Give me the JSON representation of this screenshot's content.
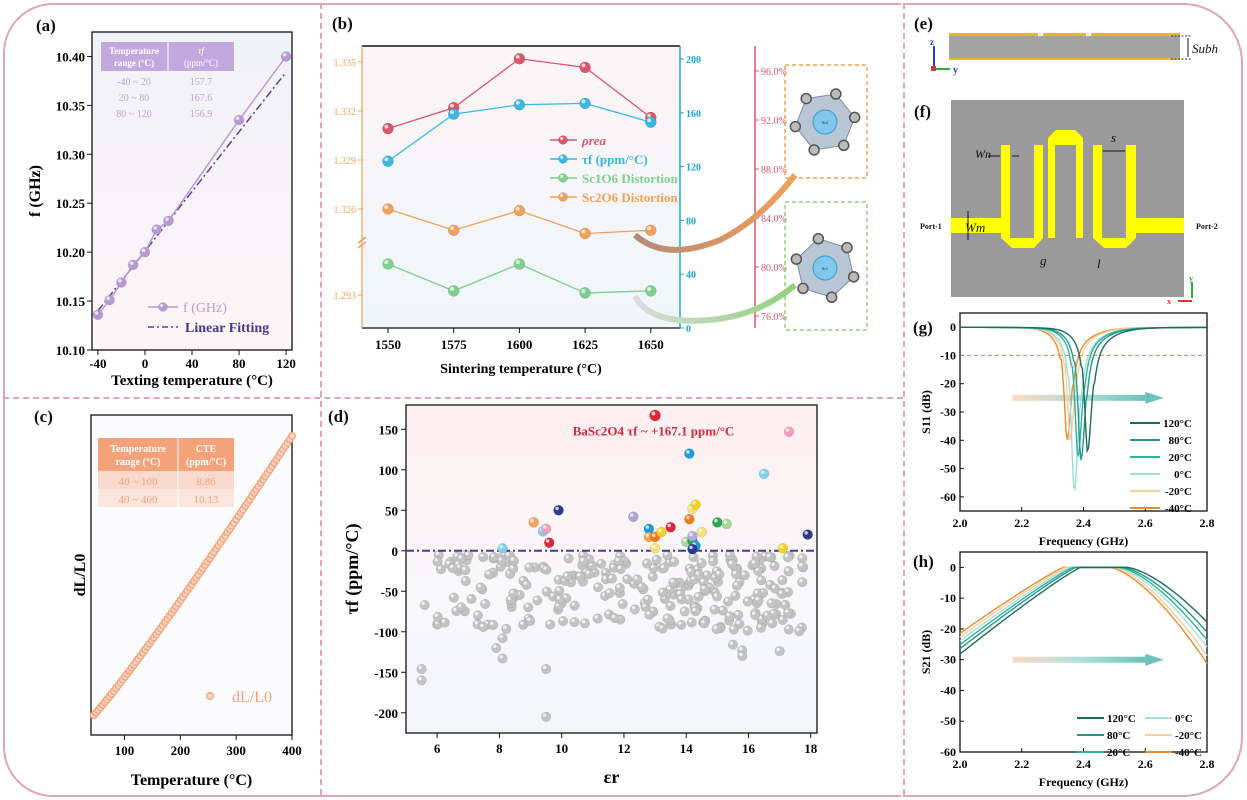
{
  "panel_labels": [
    "(a)",
    "(b)",
    "(c)",
    "(d)",
    "(e)",
    "(f)",
    "(g)",
    "(h)"
  ],
  "chart_data": [
    {
      "id": "a",
      "type": "line",
      "xlabel": "Texting temperature (°C)",
      "ylabel": "f (GHz)",
      "xlim": [
        -45,
        125
      ],
      "ylim": [
        10.1,
        10.425
      ],
      "xticks": [
        -40,
        0,
        40,
        80,
        120
      ],
      "yticks": [
        "10.10",
        "10.15",
        "10.20",
        "10.25",
        "10.30",
        "10.35",
        "10.40"
      ],
      "series": [
        {
          "name": "f (GHz)",
          "x": [
            -40,
            -30,
            -20,
            -10,
            0,
            10,
            20,
            80,
            120
          ],
          "y": [
            10.136,
            10.151,
            10.169,
            10.187,
            10.2,
            10.223,
            10.232,
            10.335,
            10.4
          ],
          "color": "#b79ad4"
        },
        {
          "name": "Linear Fitting",
          "x": [
            -40,
            120
          ],
          "y": [
            10.14,
            10.384
          ],
          "color": "#5b3f96",
          "style": "dashdot"
        }
      ],
      "legend": [
        "f (GHz)",
        "Linear Fitting"
      ],
      "inset_table": {
        "headers": [
          "Temperature range (°C)",
          "τf (ppm/°C)"
        ],
        "rows": [
          [
            "-40 ~ 20",
            "157.7"
          ],
          [
            "20 ~ 80",
            "167.6"
          ],
          [
            "80 ~ 120",
            "156.9"
          ]
        ],
        "header_color": "#c3a8de"
      }
    },
    {
      "id": "b",
      "type": "line",
      "xlabel": "Sintering temperature (°C)",
      "categories": [
        1550,
        1575,
        1600,
        1625,
        1650
      ],
      "left_axis_ticks": [
        "1.293",
        "1.326",
        "1.329",
        "1.332",
        "1.335"
      ],
      "blue_axis_ticks": [
        0,
        40,
        80,
        120,
        160,
        200
      ],
      "red_axis_ticks": [
        "76.0%",
        "80.0%",
        "84.0%",
        "88.0%",
        "92.0%",
        "96.0%"
      ],
      "series": [
        {
          "name": "ρrea",
          "axis": "red",
          "values": [
            91.3,
            93.0,
            97.0,
            96.3,
            92.2
          ],
          "color": "#d9566b"
        },
        {
          "name": "τf (ppm/°C)",
          "axis": "blue",
          "values": [
            124,
            159,
            166,
            167,
            153
          ],
          "color": "#3bb6e3"
        },
        {
          "name": "Sc1O6 Distortion",
          "axis": "left-lower",
          "values": [
            1.2945,
            1.2932,
            1.2945,
            1.2931,
            1.2932
          ],
          "color": "#7fcf8e"
        },
        {
          "name": "Sc2O6 Distortion",
          "axis": "left-upper",
          "values": [
            1.326,
            1.3247,
            1.3259,
            1.3245,
            1.3247
          ],
          "color": "#f0a05a"
        }
      ],
      "legend": [
        "ρrea",
        "τf (ppm/°C)",
        "Sc1O6 Distortion",
        "Sc2O6 Distortion"
      ],
      "structures": [
        {
          "label": "Sc2",
          "box_color": "#f0a05a"
        },
        {
          "label": "Sc1",
          "box_color": "#8fd07c"
        }
      ]
    },
    {
      "id": "c",
      "type": "scatter",
      "xlabel": "Temperature (°C)",
      "ylabel": "dL/L0",
      "xlim": [
        40,
        400
      ],
      "xticks": [
        100,
        200,
        300,
        400
      ],
      "legend": [
        "dL/L0"
      ],
      "series": [
        {
          "name": "dL/L0",
          "x_start": 45,
          "x_end": 400,
          "count": 90,
          "color": "#f2a27a"
        }
      ],
      "inset_table": {
        "headers": [
          "Temperature range (°C)",
          "CTE (ppm/°C)"
        ],
        "rows": [
          [
            "40 ~ 100",
            "8.86"
          ],
          [
            "40 ~ 400",
            "10.13"
          ]
        ],
        "header_color": "#f4a27a"
      }
    },
    {
      "id": "d",
      "type": "scatter",
      "xlabel": "εr",
      "ylabel": "τf (ppm/°C)",
      "xlim": [
        5,
        18.2
      ],
      "ylim": [
        -225,
        180
      ],
      "xticks": [
        6,
        8,
        10,
        12,
        14,
        16,
        18
      ],
      "yticks": [
        150,
        100,
        50,
        0,
        -50,
        -100,
        -150,
        -200
      ],
      "annotation": "BaSc2O4  τf ~ +167.1 ppm/°C",
      "highlight": {
        "x": 13.0,
        "y": 167.1,
        "color": "#d8283f"
      },
      "colored_points": [
        [
          8.1,
          3,
          "#7fd0f0"
        ],
        [
          9.1,
          35,
          "#f2a35a"
        ],
        [
          9.4,
          24,
          "#7fd0f0"
        ],
        [
          9.5,
          27,
          "#f0a0c0"
        ],
        [
          9.6,
          10,
          "#d8283f"
        ],
        [
          9.9,
          50,
          "#2d3a8c"
        ],
        [
          12.3,
          42,
          "#a9a3d6"
        ],
        [
          12.8,
          27,
          "#1a9be0"
        ],
        [
          12.8,
          17,
          "#f2a35a"
        ],
        [
          13.0,
          17,
          "#f07a1a"
        ],
        [
          13.0,
          3,
          "#f3e07a"
        ],
        [
          13.2,
          23,
          "#f5d02a"
        ],
        [
          13.5,
          29,
          "#d8283f"
        ],
        [
          14.1,
          120,
          "#1a9be0"
        ],
        [
          14.1,
          39,
          "#f07a1a"
        ],
        [
          14.2,
          52,
          "#f3e07a"
        ],
        [
          14.3,
          57,
          "#f5d02a"
        ],
        [
          14.5,
          23,
          "#f3e07a"
        ],
        [
          14.0,
          11,
          "#a8d89a"
        ],
        [
          14.2,
          12,
          "#2aa84a"
        ],
        [
          14.2,
          18,
          "#b4a8e0"
        ],
        [
          14.3,
          6,
          "#1a9be0"
        ],
        [
          14.2,
          2,
          "#2d3a8c"
        ],
        [
          15.0,
          35,
          "#2aa84a"
        ],
        [
          15.3,
          33,
          "#a8d89a"
        ],
        [
          16.5,
          95,
          "#7fd0f0"
        ],
        [
          17.1,
          3,
          "#f5d02a"
        ],
        [
          17.3,
          147,
          "#f0a0c0"
        ],
        [
          17.9,
          20,
          "#2d3a8c"
        ]
      ],
      "gray_points_count": 260
    },
    {
      "id": "g",
      "type": "line",
      "xlabel": "Frequency (GHz)",
      "ylabel": "S11 (dB)",
      "xlim": [
        2.0,
        2.8
      ],
      "ylim": [
        -65,
        5
      ],
      "xticks": [
        "2.0",
        "2.2",
        "2.4",
        "2.6",
        "2.8"
      ],
      "yticks": [
        0,
        -10,
        -20,
        -30,
        -40,
        -50,
        -60
      ],
      "threshold": -10,
      "series": [
        {
          "name": "120°C",
          "f0": 2.413,
          "min": -44,
          "color": "#1b6b5e"
        },
        {
          "name": "80°C",
          "f0": 2.392,
          "min": -47,
          "color": "#26978a"
        },
        {
          "name": "20°C",
          "f0": 2.382,
          "min": -46,
          "color": "#2cb3a0"
        },
        {
          "name": "0°C",
          "f0": 2.37,
          "min": -58,
          "color": "#9fddd2"
        },
        {
          "name": "-20°C",
          "f0": 2.357,
          "min": -40,
          "color": "#f8cfa0"
        },
        {
          "name": "-40°C",
          "f0": 2.347,
          "min": -40,
          "color": "#ee8a2d"
        }
      ]
    },
    {
      "id": "h",
      "type": "line",
      "xlabel": "Frequency (GHz)",
      "ylabel": "S21 (dB)",
      "xlim": [
        2.0,
        2.8
      ],
      "ylim": [
        -60,
        5
      ],
      "xticks": [
        "2.0",
        "2.2",
        "2.4",
        "2.6",
        "2.8"
      ],
      "yticks": [
        0,
        -10,
        -20,
        -30,
        -40,
        -50,
        -60
      ],
      "series": [
        {
          "name": "120°C",
          "shift": 0.04,
          "end": -22,
          "start": -25,
          "color": "#1b6b5e"
        },
        {
          "name": "80°C",
          "shift": 0.025,
          "end": -24,
          "start": -24.5,
          "color": "#26978a"
        },
        {
          "name": "20°C",
          "shift": 0.015,
          "end": -25.5,
          "start": -24,
          "color": "#2cb3a0"
        },
        {
          "name": "0°C",
          "shift": 0.005,
          "end": -26.5,
          "start": -23.5,
          "color": "#a8e0d6"
        },
        {
          "name": "-20°C",
          "shift": -0.005,
          "end": -28,
          "start": -23,
          "color": "#f8cfa0"
        },
        {
          "name": "-40°C",
          "shift": -0.015,
          "end": -29,
          "start": -22.5,
          "color": "#ee8a2d"
        }
      ]
    }
  ],
  "diagram_e": {
    "dimension_label": "Subh",
    "axis_z": "z",
    "axis_y": "y"
  },
  "diagram_f": {
    "port1": "Port-1",
    "port2": "Port-2",
    "labels": {
      "wn": "Wn",
      "wm": "Wm",
      "s": "s",
      "g": "g",
      "l": "l"
    },
    "axis_x": "x",
    "axis_y": "y"
  }
}
